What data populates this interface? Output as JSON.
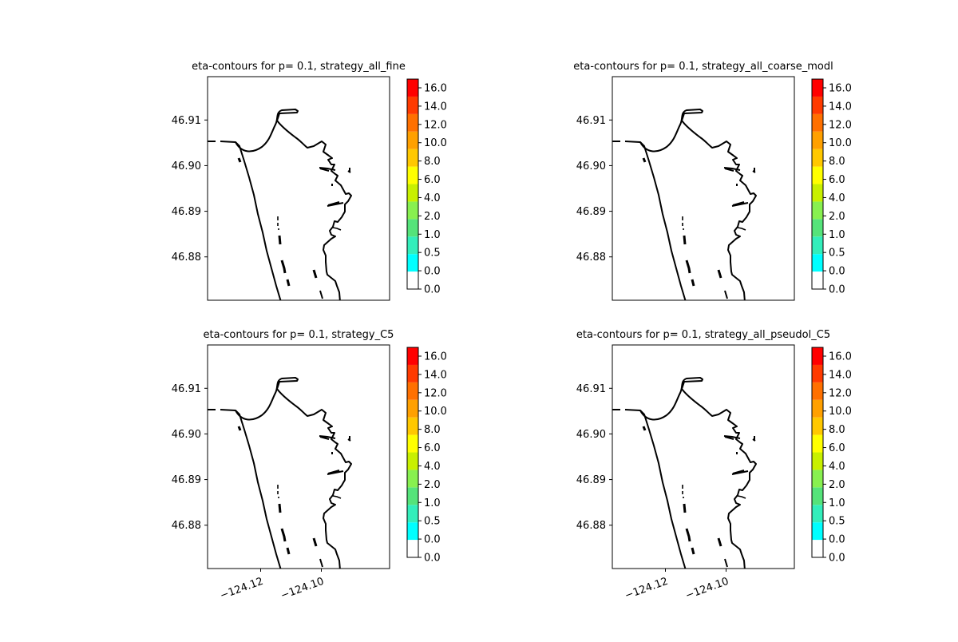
{
  "figure": {
    "ytick_labels": [
      "46.88",
      "46.89",
      "46.90",
      "46.91"
    ],
    "xtick_labels": [
      "−124.12",
      "−124.10"
    ]
  },
  "colorbar": {
    "levels": [
      "0.0",
      "0.0",
      "0.5",
      "1.0",
      "2.0",
      "4.0",
      "6.0",
      "8.0",
      "10.0",
      "12.0",
      "14.0",
      "16.0"
    ],
    "colors": [
      "#ffffff",
      "#00ffff",
      "#33eebb",
      "#55e37a",
      "#88f050",
      "#c8f000",
      "#ffff00",
      "#ffc800",
      "#ffa000",
      "#ff7000",
      "#ff3a00",
      "#ff0000"
    ]
  },
  "chart_data": [
    {
      "type": "contour",
      "title": "eta-contours for p= 0.1, strategy_all_fine",
      "ytick_labels": [
        "46.88",
        "46.89",
        "46.90",
        "46.91"
      ],
      "xtick_labels": [],
      "colorbar_ticks": [
        "0.0",
        "0.0",
        "0.5",
        "1.0",
        "2.0",
        "4.0",
        "6.0",
        "8.0",
        "10.0",
        "12.0",
        "14.0",
        "16.0"
      ],
      "yticks": [
        46.88,
        46.89,
        46.9,
        46.91
      ],
      "ylim": [
        46.8705,
        46.9195
      ],
      "xlim": [
        -124.1375,
        -124.0775
      ]
    },
    {
      "type": "contour",
      "title": "eta-contours for p= 0.1, strategy_all_coarse_modl",
      "ytick_labels": [
        "46.88",
        "46.89",
        "46.90",
        "46.91"
      ],
      "xtick_labels": [],
      "colorbar_ticks": [
        "0.0",
        "0.0",
        "0.5",
        "1.0",
        "2.0",
        "4.0",
        "6.0",
        "8.0",
        "10.0",
        "12.0",
        "14.0",
        "16.0"
      ],
      "yticks": [
        46.88,
        46.89,
        46.9,
        46.91
      ],
      "ylim": [
        46.8705,
        46.9195
      ],
      "xlim": [
        -124.1375,
        -124.0775
      ]
    },
    {
      "type": "contour",
      "title": "eta-contours for p= 0.1, strategy_C5",
      "ytick_labels": [
        "46.88",
        "46.89",
        "46.90",
        "46.91"
      ],
      "xtick_labels": [
        "−124.12",
        "−124.10"
      ],
      "colorbar_ticks": [
        "0.0",
        "0.0",
        "0.5",
        "1.0",
        "2.0",
        "4.0",
        "6.0",
        "8.0",
        "10.0",
        "12.0",
        "14.0",
        "16.0"
      ],
      "yticks": [
        46.88,
        46.89,
        46.9,
        46.91
      ],
      "xticks": [
        -124.12,
        -124.1
      ],
      "ylim": [
        46.8705,
        46.9195
      ],
      "xlim": [
        -124.1375,
        -124.0775
      ]
    },
    {
      "type": "contour",
      "title": "eta-contours for p= 0.1, strategy_all_pseudol_C5",
      "ytick_labels": [
        "46.88",
        "46.89",
        "46.90",
        "46.91"
      ],
      "xtick_labels": [
        "−124.12",
        "−124.10"
      ],
      "colorbar_ticks": [
        "0.0",
        "0.0",
        "0.5",
        "1.0",
        "2.0",
        "4.0",
        "6.0",
        "8.0",
        "10.0",
        "12.0",
        "14.0",
        "16.0"
      ],
      "yticks": [
        46.88,
        46.89,
        46.9,
        46.91
      ],
      "xticks": [
        -124.12,
        -124.1
      ],
      "ylim": [
        46.8705,
        46.9195
      ],
      "xlim": [
        -124.1375,
        -124.0775
      ]
    }
  ]
}
